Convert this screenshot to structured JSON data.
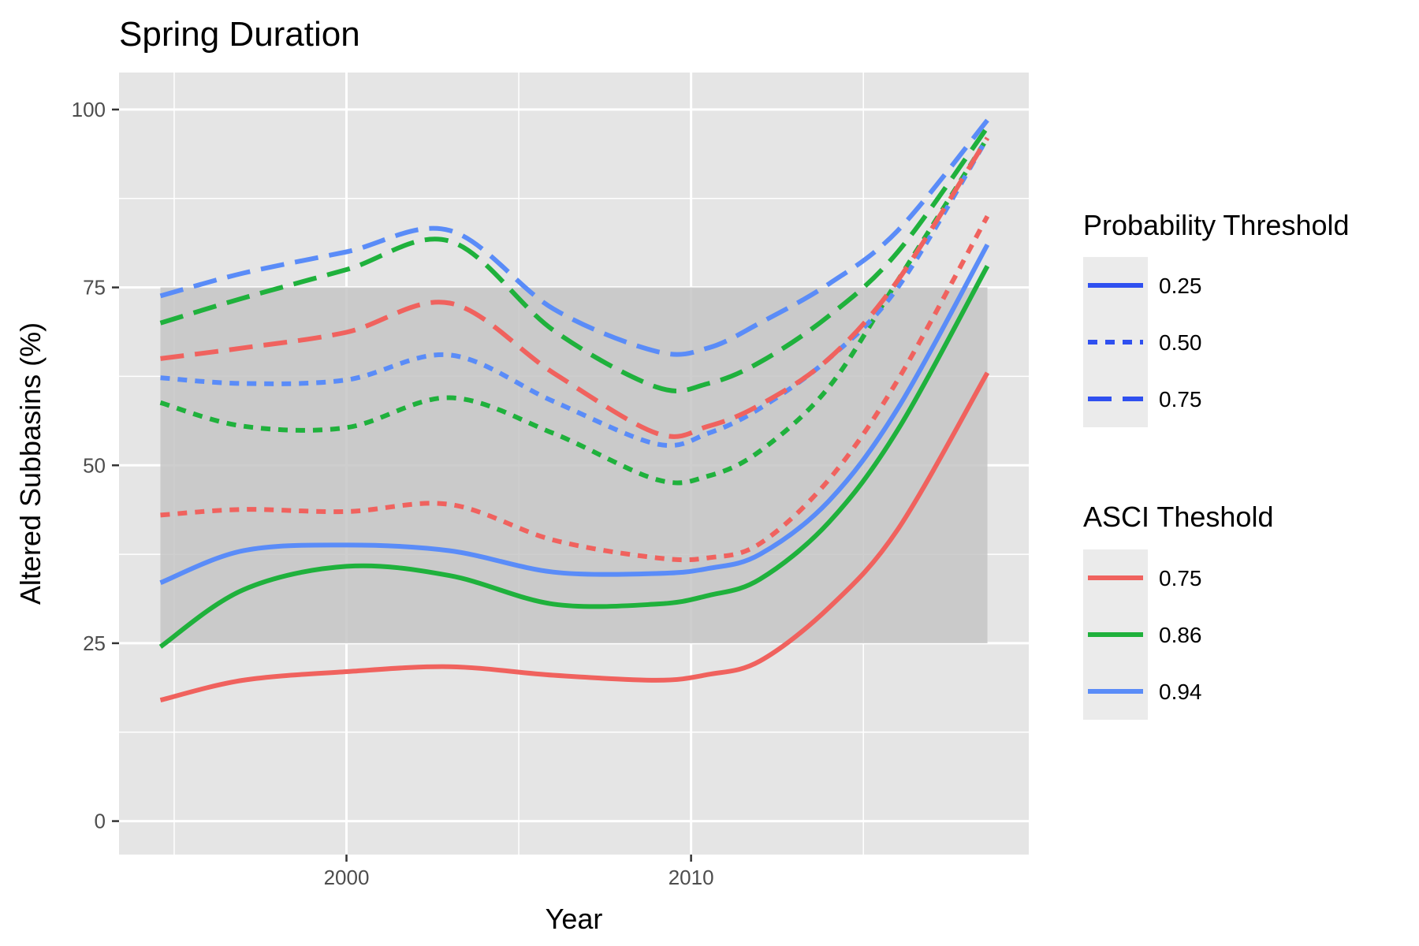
{
  "chart_data": {
    "type": "line",
    "title": "Spring Duration",
    "xlabel": "Year",
    "ylabel": "Altered Subbasins (%)",
    "xlim": [
      1993.4,
      2019.8
    ],
    "ylim": [
      -4.7,
      105.2
    ],
    "x_ticks": [
      2000,
      2010
    ],
    "x_tick_labels": [
      "2000",
      "2010"
    ],
    "x_minor_gridlines": [
      1995,
      2005,
      2015
    ],
    "y_ticks": [
      0,
      25,
      50,
      75,
      100
    ],
    "y_tick_labels": [
      "0",
      "25",
      "50",
      "75",
      "100"
    ],
    "y_minor_gridlines": [
      12.5,
      37.5,
      62.5,
      87.5
    ],
    "grid": true,
    "shaded_band": {
      "x": [
        1994.6,
        2018.6
      ],
      "y": [
        25,
        75
      ]
    },
    "x": [
      1994.6,
      1997,
      2000,
      2003,
      2006,
      2009,
      2010.5,
      2012,
      2014,
      2016,
      2018.6
    ],
    "series": [
      {
        "asci": "0.75",
        "probability": "0.25",
        "values": [
          17,
          19.8,
          21,
          21.7,
          20.5,
          19.8,
          20.6,
          22.5,
          30,
          41,
          63
        ]
      },
      {
        "asci": "0.86",
        "probability": "0.25",
        "values": [
          24.5,
          32.5,
          35.8,
          34.5,
          30.5,
          30.5,
          31.7,
          34,
          42,
          55,
          78
        ]
      },
      {
        "asci": "0.94",
        "probability": "0.25",
        "values": [
          33.5,
          38,
          38.8,
          38,
          35,
          34.8,
          35.5,
          37.5,
          45,
          58,
          81
        ]
      },
      {
        "asci": "0.75",
        "probability": "0.50",
        "values": [
          43,
          43.8,
          43.5,
          44.5,
          39.5,
          37,
          37,
          39,
          48,
          62,
          85
        ]
      },
      {
        "asci": "0.86",
        "probability": "0.50",
        "values": [
          58.8,
          55.5,
          55.3,
          59.5,
          54.5,
          48,
          48.5,
          52,
          61,
          76,
          96
        ]
      },
      {
        "asci": "0.94",
        "probability": "0.50",
        "values": [
          62.3,
          61.5,
          62,
          65.5,
          59,
          53,
          54.5,
          58,
          65,
          75,
          96
        ]
      },
      {
        "asci": "0.75",
        "probability": "0.75",
        "values": [
          65,
          66.5,
          68.7,
          72.8,
          63,
          54.5,
          55.5,
          58.5,
          65,
          76,
          96
        ]
      },
      {
        "asci": "0.86",
        "probability": "0.75",
        "values": [
          70,
          73.5,
          77.5,
          81.5,
          69,
          61,
          61.5,
          64.5,
          71,
          80,
          97.5
        ]
      },
      {
        "asci": "0.94",
        "probability": "0.75",
        "values": [
          73.8,
          77,
          80,
          83,
          72,
          66,
          66.5,
          70,
          75.5,
          83,
          98.5
        ]
      }
    ],
    "legend": {
      "placement": "right",
      "probability": {
        "title": "Probability Threshold",
        "entries": [
          {
            "label": "0.25",
            "linetype": "solid"
          },
          {
            "label": "0.50",
            "linetype": "dotted"
          },
          {
            "label": "0.75",
            "linetype": "dashed"
          }
        ]
      },
      "asci": {
        "title": "ASCI Theshold",
        "entries": [
          {
            "label": "0.75",
            "color": "#F0625E"
          },
          {
            "label": "0.86",
            "color": "#1FB13C"
          },
          {
            "label": "0.94",
            "color": "#5A8CF8"
          }
        ]
      },
      "probability_swatch_color": "#2F50F0"
    },
    "colors": {
      "panel_background": "#E5E5E5",
      "gridline": "#FFFFFF",
      "band": "#C6C6C6",
      "legend_key_background": "#EBEBEB",
      "tick_mark": "#333333"
    }
  }
}
